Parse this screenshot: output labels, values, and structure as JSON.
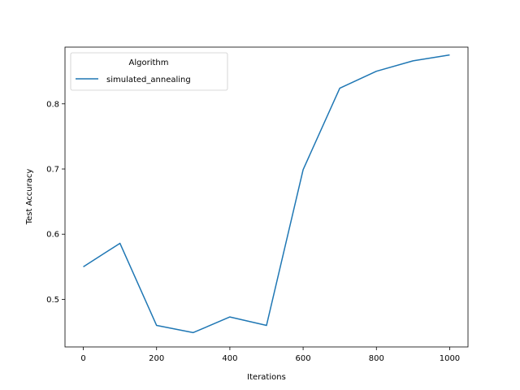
{
  "chart_data": {
    "type": "line",
    "xlabel": "Iterations",
    "ylabel": "Test Accuracy",
    "xlim": [
      -50,
      1050
    ],
    "ylim": [
      0.427,
      0.887
    ],
    "xticks": [
      0,
      200,
      400,
      600,
      800,
      1000
    ],
    "yticks": [
      0.5,
      0.6,
      0.7,
      0.8
    ],
    "ytick_labels": [
      "0.5",
      "0.6",
      "0.7",
      "0.8"
    ],
    "grid": false,
    "legend": {
      "title": "Algorithm",
      "placement": "upper-left"
    },
    "series": [
      {
        "name": "simulated_annealing",
        "color": "#1f77b4",
        "x": [
          0,
          100,
          200,
          300,
          400,
          500,
          600,
          700,
          800,
          900,
          1000
        ],
        "y": [
          0.55,
          0.586,
          0.46,
          0.449,
          0.473,
          0.46,
          0.699,
          0.824,
          0.85,
          0.866,
          0.875
        ]
      }
    ]
  }
}
